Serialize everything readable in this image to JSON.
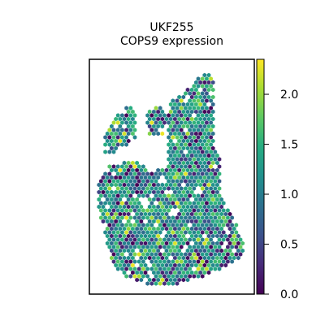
{
  "chart_data": {
    "type": "scatter",
    "title": "UKF255",
    "subtitle": "COPS9 expression",
    "xlabel": "",
    "ylabel": "",
    "marker": "hexagon",
    "colormap": "viridis",
    "colorbar": {
      "range": [
        0.0,
        2.35
      ],
      "ticks": [
        0.0,
        0.5,
        1.0,
        1.5,
        2.0
      ],
      "tick_labels": [
        "0.0",
        "0.5",
        "1.0",
        "1.5",
        "2.0"
      ]
    },
    "value_distribution": {
      "typical_mean": 1.05,
      "approx_range": [
        0.0,
        2.3
      ]
    }
  }
}
